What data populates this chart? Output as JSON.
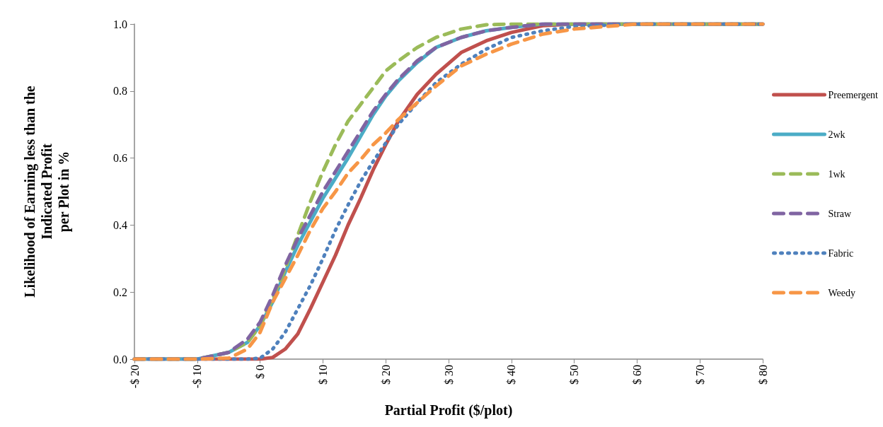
{
  "chart_data": {
    "type": "line",
    "xlabel": "Partial Profit ($/plot)",
    "ylabel": "Likelihood of Earning less than the\nIndicated Profit\nper Plot in %",
    "x": [
      -20,
      -10,
      -5,
      -2,
      0,
      2,
      4,
      6,
      8,
      10,
      12,
      14,
      16,
      18,
      20,
      22,
      25,
      28,
      32,
      36,
      40,
      45,
      50,
      60,
      80
    ],
    "series": [
      {
        "name": "Preemergent",
        "color": "#c0504d",
        "line_style": "solid",
        "values": [
          0,
          0,
          0,
          0,
          0,
          0.005,
          0.03,
          0.075,
          0.15,
          0.23,
          0.31,
          0.4,
          0.48,
          0.565,
          0.64,
          0.71,
          0.79,
          0.85,
          0.915,
          0.95,
          0.975,
          0.995,
          1,
          1,
          1
        ]
      },
      {
        "name": "2wk",
        "color": "#4bacc6",
        "line_style": "solid",
        "values": [
          0,
          0,
          0.02,
          0.05,
          0.1,
          0.17,
          0.26,
          0.34,
          0.41,
          0.48,
          0.54,
          0.6,
          0.665,
          0.73,
          0.785,
          0.83,
          0.885,
          0.93,
          0.96,
          0.98,
          0.99,
          1,
          1,
          1,
          1
        ]
      },
      {
        "name": "1wk",
        "color": "#9bbb59",
        "line_style": "dashed",
        "values": [
          0,
          0,
          0.02,
          0.05,
          0.1,
          0.18,
          0.27,
          0.37,
          0.47,
          0.56,
          0.64,
          0.71,
          0.76,
          0.81,
          0.86,
          0.89,
          0.93,
          0.96,
          0.985,
          0.998,
          1,
          1,
          1,
          1,
          1
        ]
      },
      {
        "name": "Straw",
        "color": "#8064a2",
        "line_style": "dashed",
        "values": [
          0,
          0,
          0.02,
          0.06,
          0.11,
          0.19,
          0.28,
          0.36,
          0.43,
          0.5,
          0.56,
          0.62,
          0.68,
          0.74,
          0.79,
          0.835,
          0.89,
          0.93,
          0.96,
          0.98,
          0.99,
          1,
          1,
          1,
          1
        ]
      },
      {
        "name": "Fabric",
        "color": "#4f81bd",
        "line_style": "dotted",
        "values": [
          0,
          0,
          0,
          0,
          0.003,
          0.03,
          0.08,
          0.15,
          0.22,
          0.3,
          0.385,
          0.46,
          0.53,
          0.59,
          0.645,
          0.7,
          0.765,
          0.825,
          0.88,
          0.925,
          0.96,
          0.98,
          0.993,
          1,
          1
        ]
      },
      {
        "name": "Weedy",
        "color": "#f79646",
        "line_style": "dashed",
        "values": [
          0,
          0,
          0.003,
          0.03,
          0.08,
          0.17,
          0.24,
          0.31,
          0.385,
          0.45,
          0.5,
          0.555,
          0.595,
          0.64,
          0.675,
          0.715,
          0.765,
          0.815,
          0.875,
          0.91,
          0.94,
          0.97,
          0.985,
          1,
          1
        ]
      }
    ],
    "xlim": [
      -20,
      80
    ],
    "xticks": [
      {
        "value": -20,
        "label": "-$ 20"
      },
      {
        "value": -10,
        "label": "-$ 10"
      },
      {
        "value": 0,
        "label": "$ 0"
      },
      {
        "value": 10,
        "label": "$ 10"
      },
      {
        "value": 20,
        "label": "$ 20"
      },
      {
        "value": 30,
        "label": "$ 30"
      },
      {
        "value": 40,
        "label": "$ 40"
      },
      {
        "value": 50,
        "label": "$ 50"
      },
      {
        "value": 60,
        "label": "$ 60"
      },
      {
        "value": 70,
        "label": "$ 70"
      },
      {
        "value": 80,
        "label": "$ 80"
      }
    ],
    "ylim": [
      0,
      1
    ],
    "yticks": [
      {
        "value": 0,
        "label": "0.0"
      },
      {
        "value": 0.2,
        "label": "0.2"
      },
      {
        "value": 0.4,
        "label": "0.4"
      },
      {
        "value": 0.6,
        "label": "0.6"
      },
      {
        "value": 0.8,
        "label": "0.8"
      },
      {
        "value": 1,
        "label": "1.0"
      }
    ],
    "grid": false,
    "legend": "right",
    "marker": "none"
  }
}
